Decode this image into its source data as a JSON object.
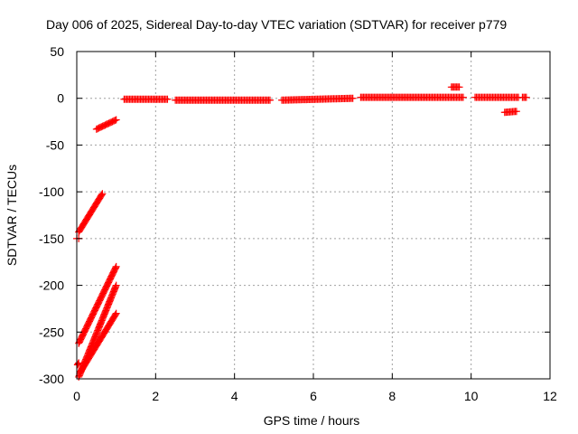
{
  "chart_data": {
    "type": "scatter",
    "title": "Day 006 of 2025, Sidereal Day-to-day VTEC variation (SDTVAR) for receiver p779",
    "xlabel": "GPS time / hours",
    "ylabel": "SDTVAR / TECUs",
    "xlim": [
      0,
      12
    ],
    "ylim": [
      -300,
      50
    ],
    "x_ticks": [
      0,
      2,
      4,
      6,
      8,
      10,
      12
    ],
    "y_ticks": [
      -300,
      -250,
      -200,
      -150,
      -100,
      -50,
      0,
      50
    ],
    "grid": true,
    "legend": "none",
    "marker": "+",
    "color": "#ff0000",
    "segments": [
      {
        "x": [
          0.0,
          0.05
        ],
        "y": [
          -150,
          -150
        ]
      },
      {
        "x": [
          0.02,
          0.05
        ],
        "y": [
          -285,
          -283
        ]
      },
      {
        "x": [
          0.05,
          0.65
        ],
        "y": [
          -143,
          -102
        ]
      },
      {
        "x": [
          0.05,
          1.0
        ],
        "y": [
          -262,
          -180
        ]
      },
      {
        "x": [
          0.05,
          1.0
        ],
        "y": [
          -298,
          -200
        ]
      },
      {
        "x": [
          0.1,
          1.0
        ],
        "y": [
          -292,
          -230
        ]
      },
      {
        "x": [
          0.5,
          1.0
        ],
        "y": [
          -33,
          -23
        ]
      },
      {
        "x": [
          1.2,
          2.3
        ],
        "y": [
          -1,
          -1
        ]
      },
      {
        "x": [
          2.5,
          4.9
        ],
        "y": [
          -2,
          -2
        ]
      },
      {
        "x": [
          5.2,
          7.0
        ],
        "y": [
          -2,
          0
        ]
      },
      {
        "x": [
          7.2,
          9.8
        ],
        "y": [
          1,
          1
        ]
      },
      {
        "x": [
          9.5,
          9.7
        ],
        "y": [
          12,
          12
        ]
      },
      {
        "x": [
          10.1,
          11.2
        ],
        "y": [
          1,
          1
        ]
      },
      {
        "x": [
          10.85,
          11.15
        ],
        "y": [
          -15,
          -14
        ]
      },
      {
        "x": [
          11.3,
          11.4
        ],
        "y": [
          1,
          1
        ]
      }
    ]
  }
}
